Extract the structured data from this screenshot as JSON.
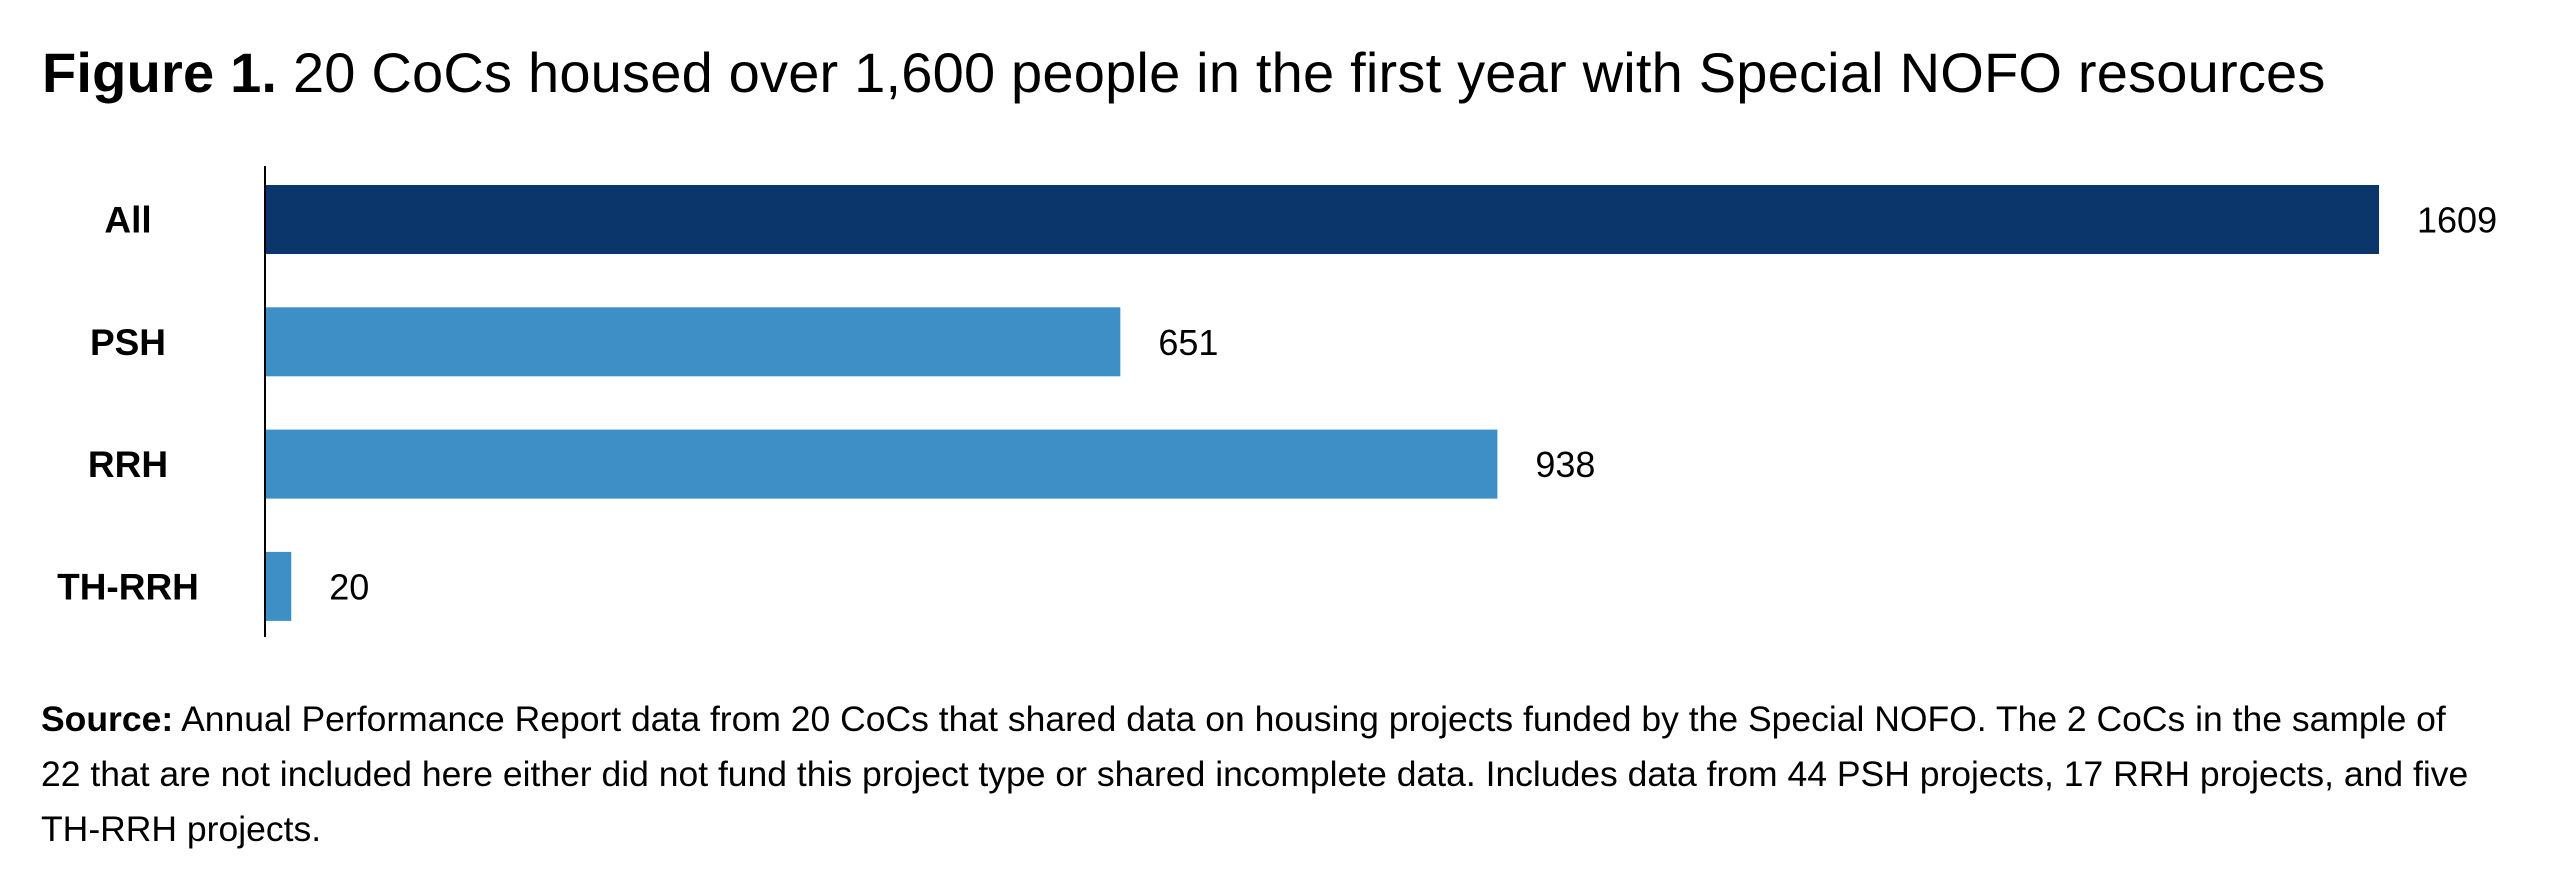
{
  "figure": {
    "label": "Figure 1.",
    "title": "20 CoCs housed over 1,600 people in the first year with Special NOFO resources"
  },
  "source": {
    "label": "Source:",
    "text": "Annual Performance Report data from 20 CoCs that shared data on housing projects funded by the Special NOFO. The 2 CoCs in the sample of 22 that are not included here either did not fund this project type or shared incomplete data. Includes data from 44 PSH projects, 17 RRH projects, and five TH-RRH projects."
  },
  "colors": {
    "total_bar": "#0b366b",
    "category_bar": "#3d8fc6",
    "axis": "#000000"
  },
  "chart_data": {
    "type": "bar",
    "orientation": "horizontal",
    "title": "Figure 1. 20 CoCs housed over 1,600 people in the first year with Special NOFO resources",
    "xlabel": "",
    "ylabel": "",
    "categories": [
      "All",
      "PSH",
      "RRH",
      "TH-RRH"
    ],
    "values": [
      1609,
      651,
      938,
      20
    ],
    "data_labels": [
      "1609",
      "651",
      "938",
      "20"
    ],
    "bar_colors": [
      "#0b366b",
      "#3d8fc6",
      "#3d8fc6",
      "#3d8fc6"
    ],
    "xlim": [
      0,
      1609
    ],
    "grid": false,
    "legend": "none",
    "value_axis_visible": false
  }
}
